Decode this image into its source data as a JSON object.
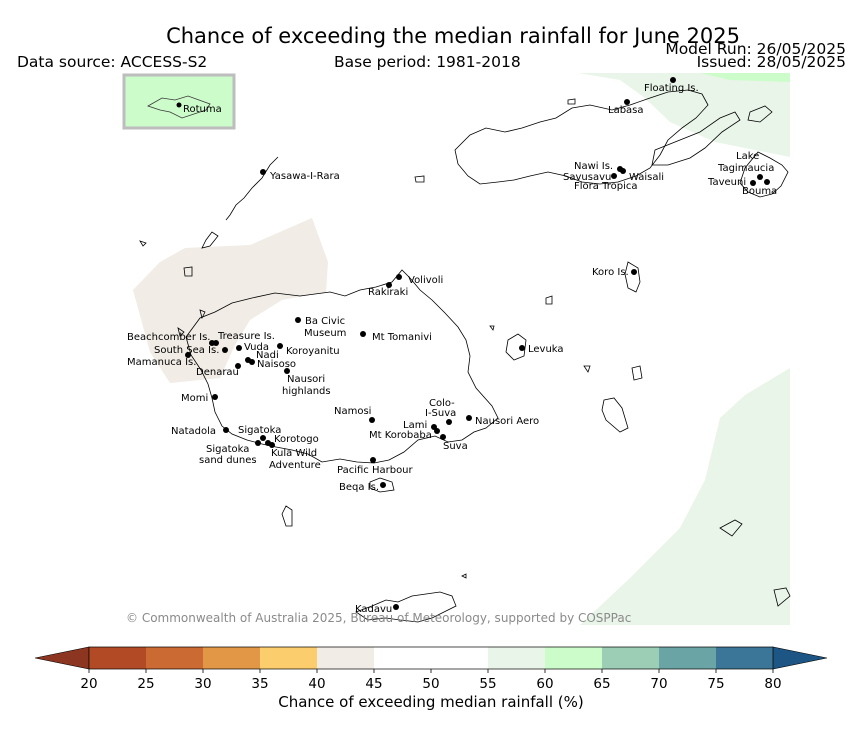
{
  "header": {
    "title": "Chance of exceeding the median rainfall for June 2025",
    "data_source": "Data source: ACCESS-S2",
    "base_period": "Base period: 1981-2018",
    "model_run": "Model Run: 26/05/2025",
    "issued": "Issued: 28/05/2025"
  },
  "inset": {
    "label": "Rotuma"
  },
  "places": [
    "Floating Is.",
    "Labasa",
    "Nawi Is.",
    "Savusavu",
    "Waisali",
    "Flora Tropica",
    "Lake",
    "Tagimaucia",
    "Taveuni",
    "Bouma",
    "Yasawa-I-Rara",
    "Koro Is.",
    "Volivoli",
    "Rakiraki",
    "Ba Civic",
    "Museum",
    "Mt Tomanivi",
    "Beachcomber Is.",
    "Treasure Is.",
    "South Sea Is.",
    "Vuda",
    "Nadi",
    "Koroyanitu",
    "Mamanuca Is.",
    "Naisoso",
    "Denarau",
    "Nausori",
    "highlands",
    "Levuka",
    "Momi",
    "Namosi",
    "Colo-",
    "I-Suva",
    "Nausori Aero",
    "Lami",
    "Mt Korobaba",
    "Suva",
    "Natadola",
    "Sigatoka",
    "Korotogo",
    "sand dunes",
    "Kula Wild",
    "Adventure",
    "Pacific Harbour",
    "Beqa Is.",
    "Kadavu"
  ],
  "copyright": "© Commonwealth of Australia 2025, Bureau of Meteorology, supported by COSPPac",
  "colorbar": {
    "title": "Chance of exceeding median rainfall (%)",
    "ticks": [
      "20",
      "25",
      "30",
      "35",
      "40",
      "45",
      "50",
      "55",
      "60",
      "65",
      "70",
      "75",
      "80"
    ],
    "colors": [
      "#b24a25",
      "#cc6a33",
      "#e29746",
      "#fccd6c",
      "#f1ece5",
      "#ffffff",
      "#ffffff",
      "#e9f5e8",
      "#cdfccb",
      "#9ccdb5",
      "#6aa4a4",
      "#3b7698"
    ],
    "under_color": "#8c3520",
    "over_color": "#1d5584"
  },
  "map_fill_colors": {
    "beige": "#f1ece5",
    "light_green": "#e9f5e8",
    "green": "#cdfccb"
  }
}
